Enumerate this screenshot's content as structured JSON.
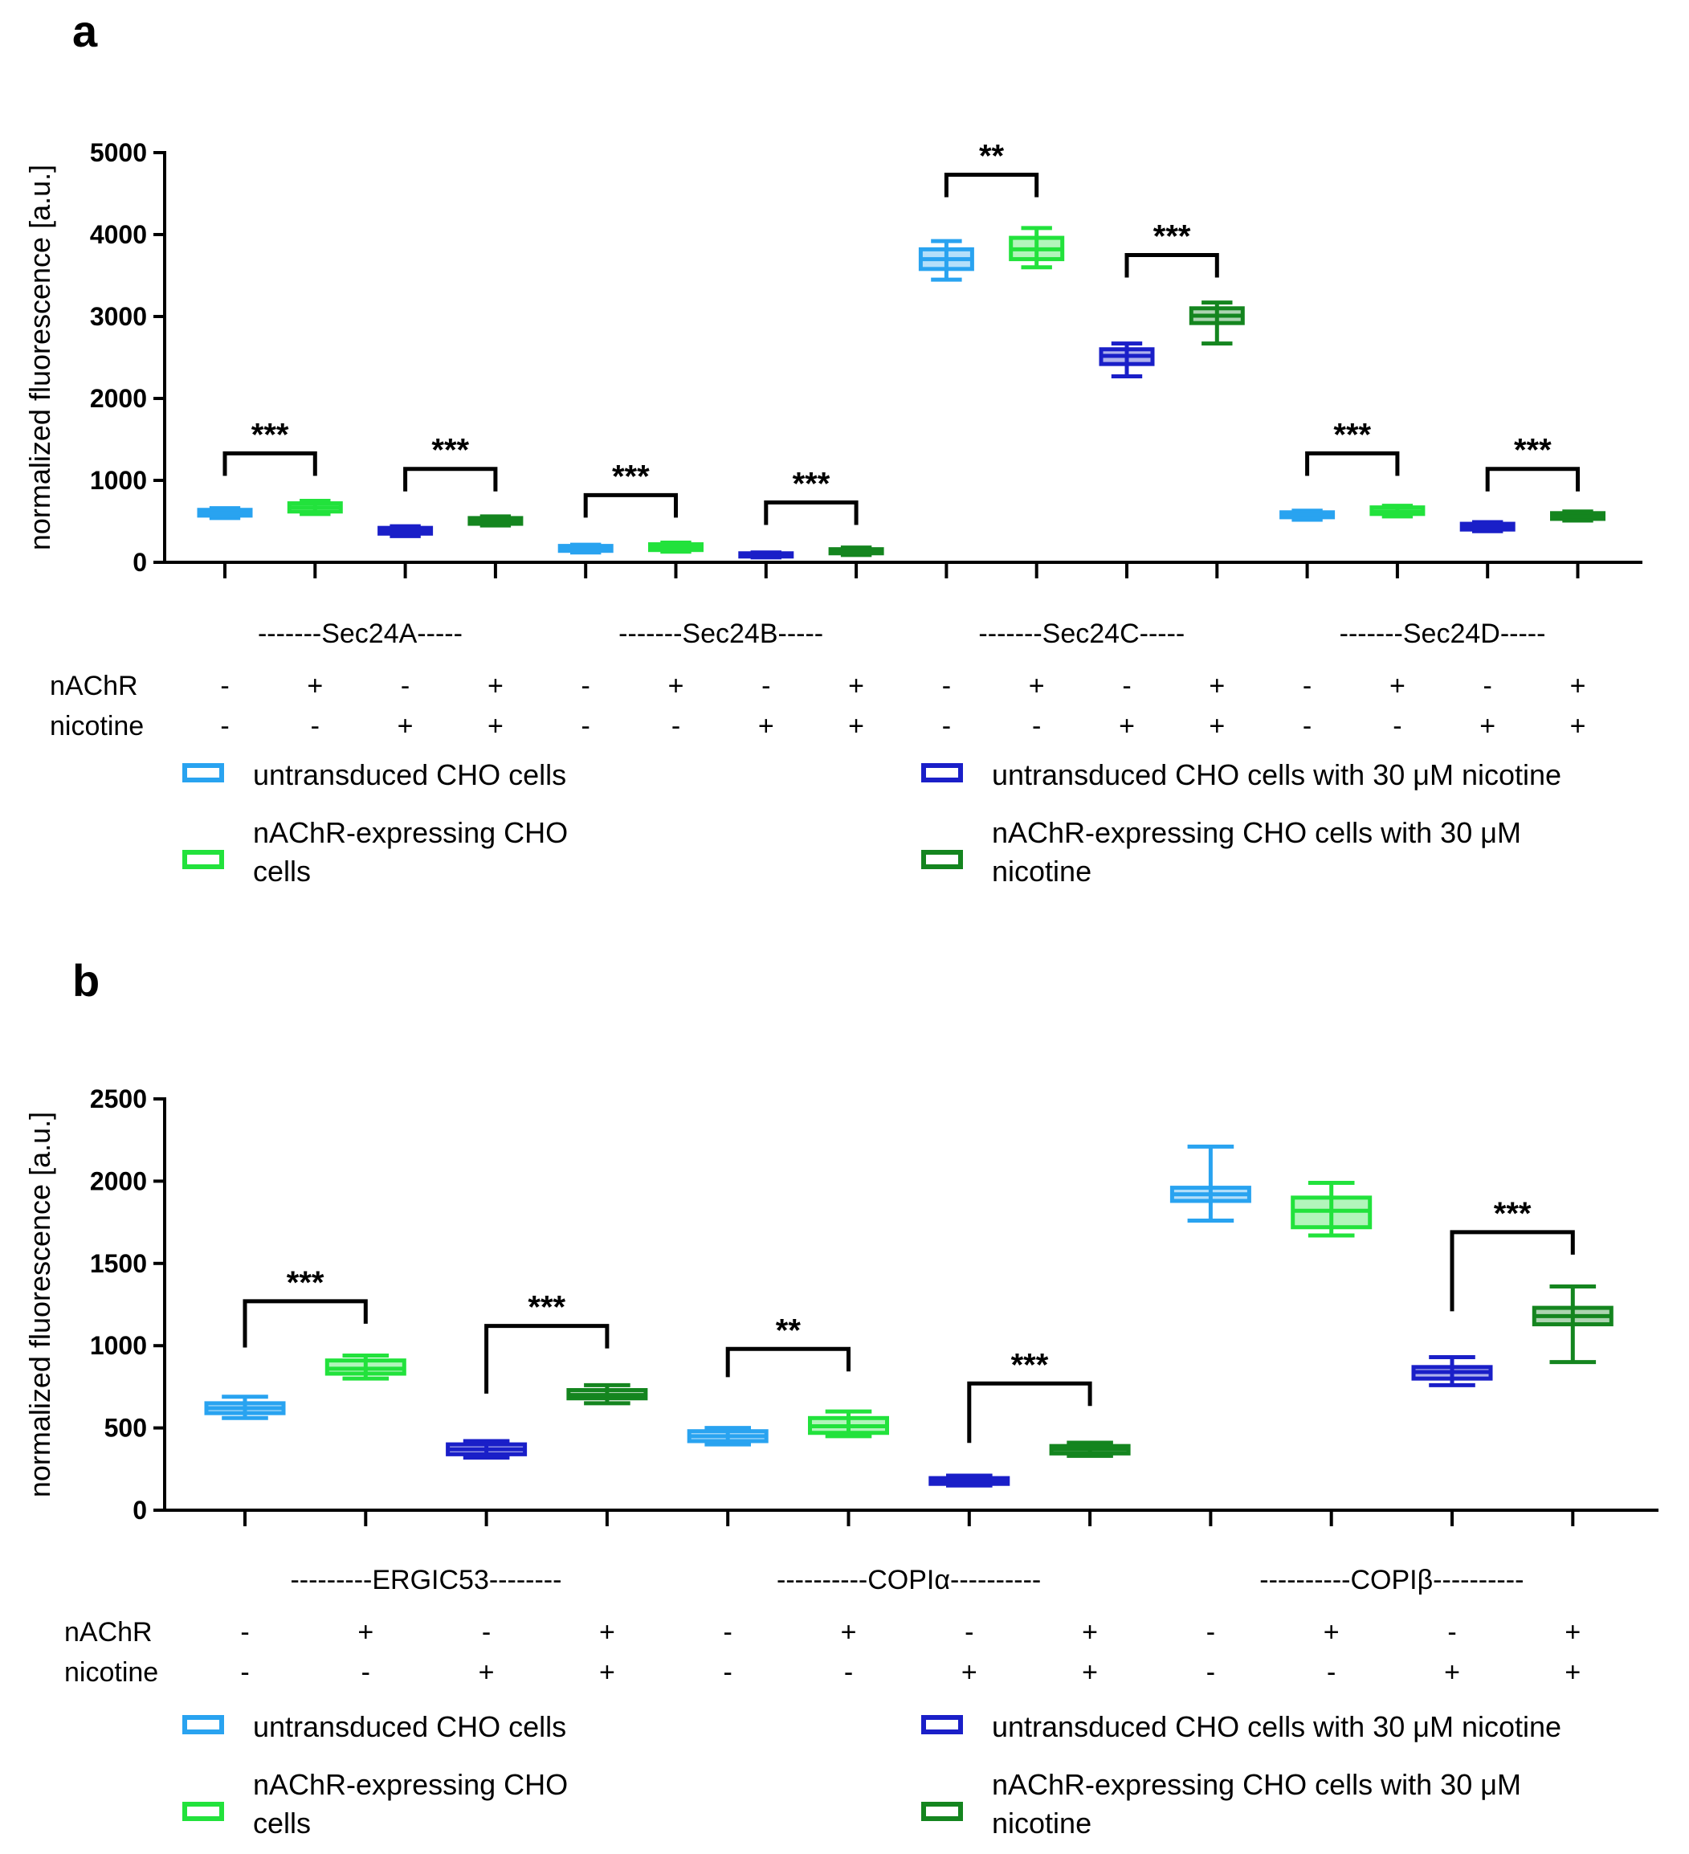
{
  "colors": {
    "untransduced": "#29a3f0",
    "expressing": "#22e23c",
    "untransduced_nicotine": "#1a1fc8",
    "expressing_nicotine": "#14851f",
    "axis": "#000000"
  },
  "legend": {
    "items": [
      {
        "label_lines": [
          "untransduced CHO cells"
        ],
        "color_key": "untransduced"
      },
      {
        "label_lines": [
          "nAChR-expressing CHO",
          "cells"
        ],
        "color_key": "expressing"
      },
      {
        "label_lines": [
          "untransduced CHO cells with 30 μM nicotine"
        ],
        "color_key": "untransduced_nicotine"
      },
      {
        "label_lines": [
          "nAChR-expressing CHO cells with 30 μM",
          "nicotine"
        ],
        "color_key": "expressing_nicotine"
      }
    ]
  },
  "chart_data": [
    {
      "panel_label": "a",
      "type": "box",
      "ylabel": "normalized fluorescence [a.u.]",
      "ylim": [
        0,
        5000
      ],
      "yticks": [
        0,
        1000,
        2000,
        3000,
        4000,
        5000
      ],
      "condition_rows": [
        {
          "label": "nAChR",
          "symbols": [
            "-",
            "+",
            "-",
            "+",
            "-",
            "+",
            "-",
            "+",
            "-",
            "+",
            "-",
            "+",
            "-",
            "+",
            "-",
            "+"
          ]
        },
        {
          "label": "nicotine",
          "symbols": [
            "-",
            "-",
            "+",
            "+",
            "-",
            "-",
            "+",
            "+",
            "-",
            "-",
            "+",
            "+",
            "-",
            "-",
            "+",
            "+"
          ]
        }
      ],
      "groups": [
        {
          "label": "-------Sec24A-----",
          "boxes": [
            {
              "series": "untransduced",
              "min": 540,
              "q1": 570,
              "median": 600,
              "q3": 640,
              "max": 660
            },
            {
              "series": "expressing",
              "min": 590,
              "q1": 620,
              "median": 670,
              "q3": 720,
              "max": 750
            },
            {
              "series": "untransduced_nicotine",
              "min": 320,
              "q1": 350,
              "median": 380,
              "q3": 420,
              "max": 440
            },
            {
              "series": "expressing_nicotine",
              "min": 450,
              "q1": 470,
              "median": 500,
              "q3": 540,
              "max": 560
            }
          ]
        },
        {
          "label": "-------Sec24B-----",
          "boxes": [
            {
              "series": "untransduced",
              "min": 120,
              "q1": 140,
              "median": 170,
              "q3": 200,
              "max": 215
            },
            {
              "series": "expressing",
              "min": 130,
              "q1": 150,
              "median": 180,
              "q3": 220,
              "max": 240
            },
            {
              "series": "untransduced_nicotine",
              "min": 60,
              "q1": 75,
              "median": 90,
              "q3": 110,
              "max": 120
            },
            {
              "series": "expressing_nicotine",
              "min": 90,
              "q1": 110,
              "median": 130,
              "q3": 160,
              "max": 180
            }
          ]
        },
        {
          "label": "-------Sec24C-----",
          "boxes": [
            {
              "series": "untransduced",
              "min": 3450,
              "q1": 3580,
              "median": 3700,
              "q3": 3820,
              "max": 3920
            },
            {
              "series": "expressing",
              "min": 3600,
              "q1": 3700,
              "median": 3820,
              "q3": 3960,
              "max": 4080
            },
            {
              "series": "untransduced_nicotine",
              "min": 2270,
              "q1": 2420,
              "median": 2520,
              "q3": 2600,
              "max": 2670
            },
            {
              "series": "expressing_nicotine",
              "min": 2670,
              "q1": 2920,
              "median": 3010,
              "q3": 3100,
              "max": 3170
            }
          ]
        },
        {
          "label": "-------Sec24D-----",
          "boxes": [
            {
              "series": "untransduced",
              "min": 520,
              "q1": 550,
              "median": 580,
              "q3": 610,
              "max": 630
            },
            {
              "series": "expressing",
              "min": 560,
              "q1": 590,
              "median": 620,
              "q3": 670,
              "max": 690
            },
            {
              "series": "untransduced_nicotine",
              "min": 380,
              "q1": 400,
              "median": 430,
              "q3": 470,
              "max": 490
            },
            {
              "series": "expressing_nicotine",
              "min": 510,
              "q1": 530,
              "median": 560,
              "q3": 600,
              "max": 620
            }
          ]
        }
      ],
      "significance": [
        {
          "from": 0,
          "to": 1,
          "label": "***",
          "bar_y": 1330
        },
        {
          "from": 2,
          "to": 3,
          "label": "***",
          "bar_y": 1140
        },
        {
          "from": 4,
          "to": 5,
          "label": "***",
          "bar_y": 820
        },
        {
          "from": 6,
          "to": 7,
          "label": "***",
          "bar_y": 730
        },
        {
          "from": 8,
          "to": 9,
          "label": "**",
          "bar_y": 4730
        },
        {
          "from": 10,
          "to": 11,
          "label": "***",
          "bar_y": 3750
        },
        {
          "from": 12,
          "to": 13,
          "label": "***",
          "bar_y": 1330
        },
        {
          "from": 14,
          "to": 15,
          "label": "***",
          "bar_y": 1140
        }
      ]
    },
    {
      "panel_label": "b",
      "type": "box",
      "ylabel": "normalized fluorescence [a.u.]",
      "ylim": [
        0,
        2500
      ],
      "yticks": [
        0,
        500,
        1000,
        1500,
        2000,
        2500
      ],
      "condition_rows": [
        {
          "label": "nAChR",
          "symbols": [
            "-",
            "+",
            "-",
            "+",
            "-",
            "+",
            "-",
            "+",
            "-",
            "+",
            "-",
            "+"
          ]
        },
        {
          "label": "nicotine",
          "symbols": [
            "-",
            "-",
            "+",
            "+",
            "-",
            "-",
            "+",
            "+",
            "-",
            "-",
            "+",
            "+"
          ]
        }
      ],
      "groups": [
        {
          "label": "---------ERGIC53--------",
          "boxes": [
            {
              "series": "untransduced",
              "min": 560,
              "q1": 590,
              "median": 620,
              "q3": 650,
              "max": 690
            },
            {
              "series": "expressing",
              "min": 800,
              "q1": 830,
              "median": 860,
              "q3": 910,
              "max": 940
            },
            {
              "series": "untransduced_nicotine",
              "min": 320,
              "q1": 340,
              "median": 370,
              "q3": 400,
              "max": 420
            },
            {
              "series": "expressing_nicotine",
              "min": 650,
              "q1": 680,
              "median": 700,
              "q3": 730,
              "max": 760
            }
          ]
        },
        {
          "label": "----------COPIα----------",
          "boxes": [
            {
              "series": "untransduced",
              "min": 400,
              "q1": 420,
              "median": 450,
              "q3": 480,
              "max": 500
            },
            {
              "series": "expressing",
              "min": 450,
              "q1": 470,
              "median": 510,
              "q3": 560,
              "max": 600
            },
            {
              "series": "untransduced_nicotine",
              "min": 150,
              "q1": 160,
              "median": 180,
              "q3": 195,
              "max": 210
            },
            {
              "series": "expressing_nicotine",
              "min": 330,
              "q1": 345,
              "median": 370,
              "q3": 390,
              "max": 410
            }
          ]
        },
        {
          "label": "----------COPIβ----------",
          "boxes": [
            {
              "series": "untransduced",
              "min": 1760,
              "q1": 1880,
              "median": 1920,
              "q3": 1960,
              "max": 2210
            },
            {
              "series": "expressing",
              "min": 1670,
              "q1": 1720,
              "median": 1820,
              "q3": 1900,
              "max": 1990
            },
            {
              "series": "untransduced_nicotine",
              "min": 760,
              "q1": 800,
              "median": 840,
              "q3": 870,
              "max": 930
            },
            {
              "series": "expressing_nicotine",
              "min": 900,
              "q1": 1130,
              "median": 1180,
              "q3": 1230,
              "max": 1360
            }
          ]
        }
      ],
      "significance": [
        {
          "from": 0,
          "to": 1,
          "label": "***",
          "bar_y": 1270,
          "left_drop_y": 940
        },
        {
          "from": 2,
          "to": 3,
          "label": "***",
          "bar_y": 1120,
          "left_drop_y": 660
        },
        {
          "from": 4,
          "to": 5,
          "label": "**",
          "bar_y": 980,
          "left_drop_y": 760
        },
        {
          "from": 6,
          "to": 7,
          "label": "***",
          "bar_y": 770,
          "left_drop_y": 360
        },
        {
          "from": 10,
          "to": 11,
          "label": "***",
          "bar_y": 1690,
          "left_drop_y": 1160
        }
      ]
    }
  ]
}
